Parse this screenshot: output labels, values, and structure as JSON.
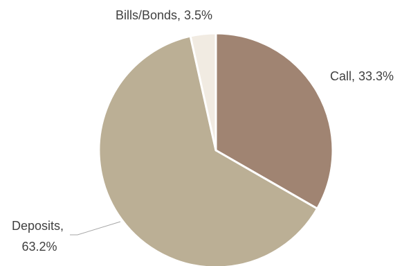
{
  "chart_data": {
    "type": "pie",
    "start_angle_deg": 0,
    "direction": "clockwise",
    "legend": "none",
    "slices": [
      {
        "name": "Call",
        "value": 33.3,
        "label": "Call, 33.3%",
        "color": "#a08472"
      },
      {
        "name": "Deposits",
        "value": 63.2,
        "label_lines": [
          "Deposits,",
          "63.2%"
        ],
        "color": "#bbaf95"
      },
      {
        "name": "Bills/Bonds",
        "value": 3.5,
        "label": "Bills/Bonds, 3.5%",
        "color": "#f1ebe2"
      }
    ]
  }
}
